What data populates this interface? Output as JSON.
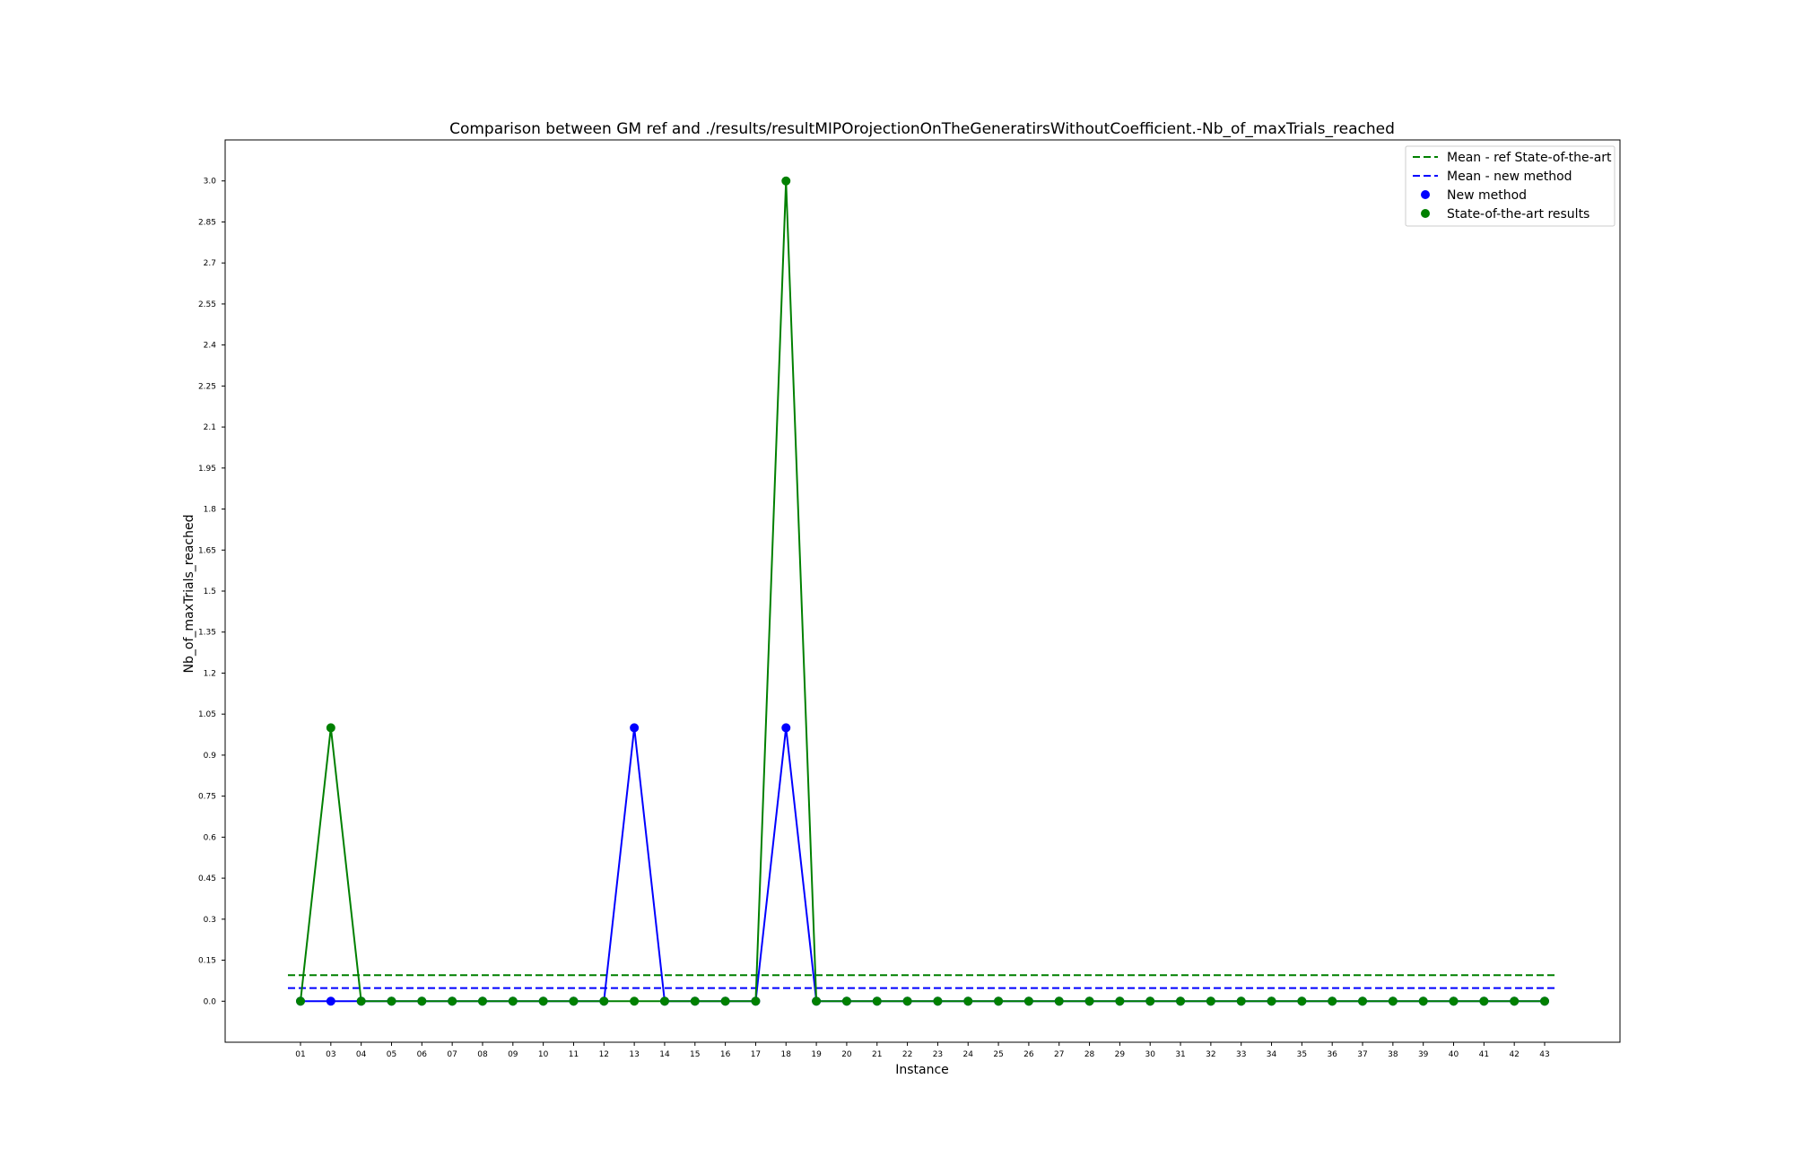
{
  "chart_data": {
    "type": "line",
    "title": "Comparison between GM ref and ./results/resultMIPOrojectionOnTheGeneratirsWithoutCoefficient.-Nb_of_maxTrials_reached",
    "xlabel": "Instance",
    "ylabel": "Nb_of_maxTrials_reached",
    "categories": [
      "01",
      "03",
      "04",
      "05",
      "06",
      "07",
      "08",
      "09",
      "10",
      "11",
      "12",
      "13",
      "14",
      "15",
      "16",
      "17",
      "18",
      "19",
      "20",
      "21",
      "22",
      "23",
      "24",
      "25",
      "26",
      "27",
      "28",
      "29",
      "30",
      "31",
      "32",
      "33",
      "34",
      "35",
      "36",
      "37",
      "38",
      "39",
      "40",
      "41",
      "42",
      "43"
    ],
    "y_ticks": [
      "0.0",
      "0.15",
      "0.3",
      "0.45",
      "0.6",
      "0.75",
      "0.9",
      "1.05",
      "1.2",
      "1.35",
      "1.5",
      "1.65",
      "1.8",
      "1.95",
      "2.1",
      "2.25",
      "2.4",
      "2.55",
      "2.7",
      "2.85",
      "3.0"
    ],
    "ylim": [
      -0.15,
      3.15
    ],
    "grid": false,
    "legend_position": "top-right",
    "series": [
      {
        "name": "New method",
        "color": "#0000ff",
        "values": [
          0,
          0,
          0,
          0,
          0,
          0,
          0,
          0,
          0,
          0,
          0,
          1,
          0,
          0,
          0,
          0,
          1,
          0,
          0,
          0,
          0,
          0,
          0,
          0,
          0,
          0,
          0,
          0,
          0,
          0,
          0,
          0,
          0,
          0,
          0,
          0,
          0,
          0,
          0,
          0,
          0,
          0
        ]
      },
      {
        "name": "State-of-the-art results",
        "color": "#008000",
        "values": [
          0,
          1,
          0,
          0,
          0,
          0,
          0,
          0,
          0,
          0,
          0,
          0,
          0,
          0,
          0,
          0,
          3,
          0,
          0,
          0,
          0,
          0,
          0,
          0,
          0,
          0,
          0,
          0,
          0,
          0,
          0,
          0,
          0,
          0,
          0,
          0,
          0,
          0,
          0,
          0,
          0,
          0
        ]
      }
    ],
    "means": [
      {
        "name": "Mean - ref State-of-the-art",
        "color": "#008000",
        "value": 0.095
      },
      {
        "name": "Mean - new method",
        "color": "#0000ff",
        "value": 0.048
      }
    ]
  }
}
